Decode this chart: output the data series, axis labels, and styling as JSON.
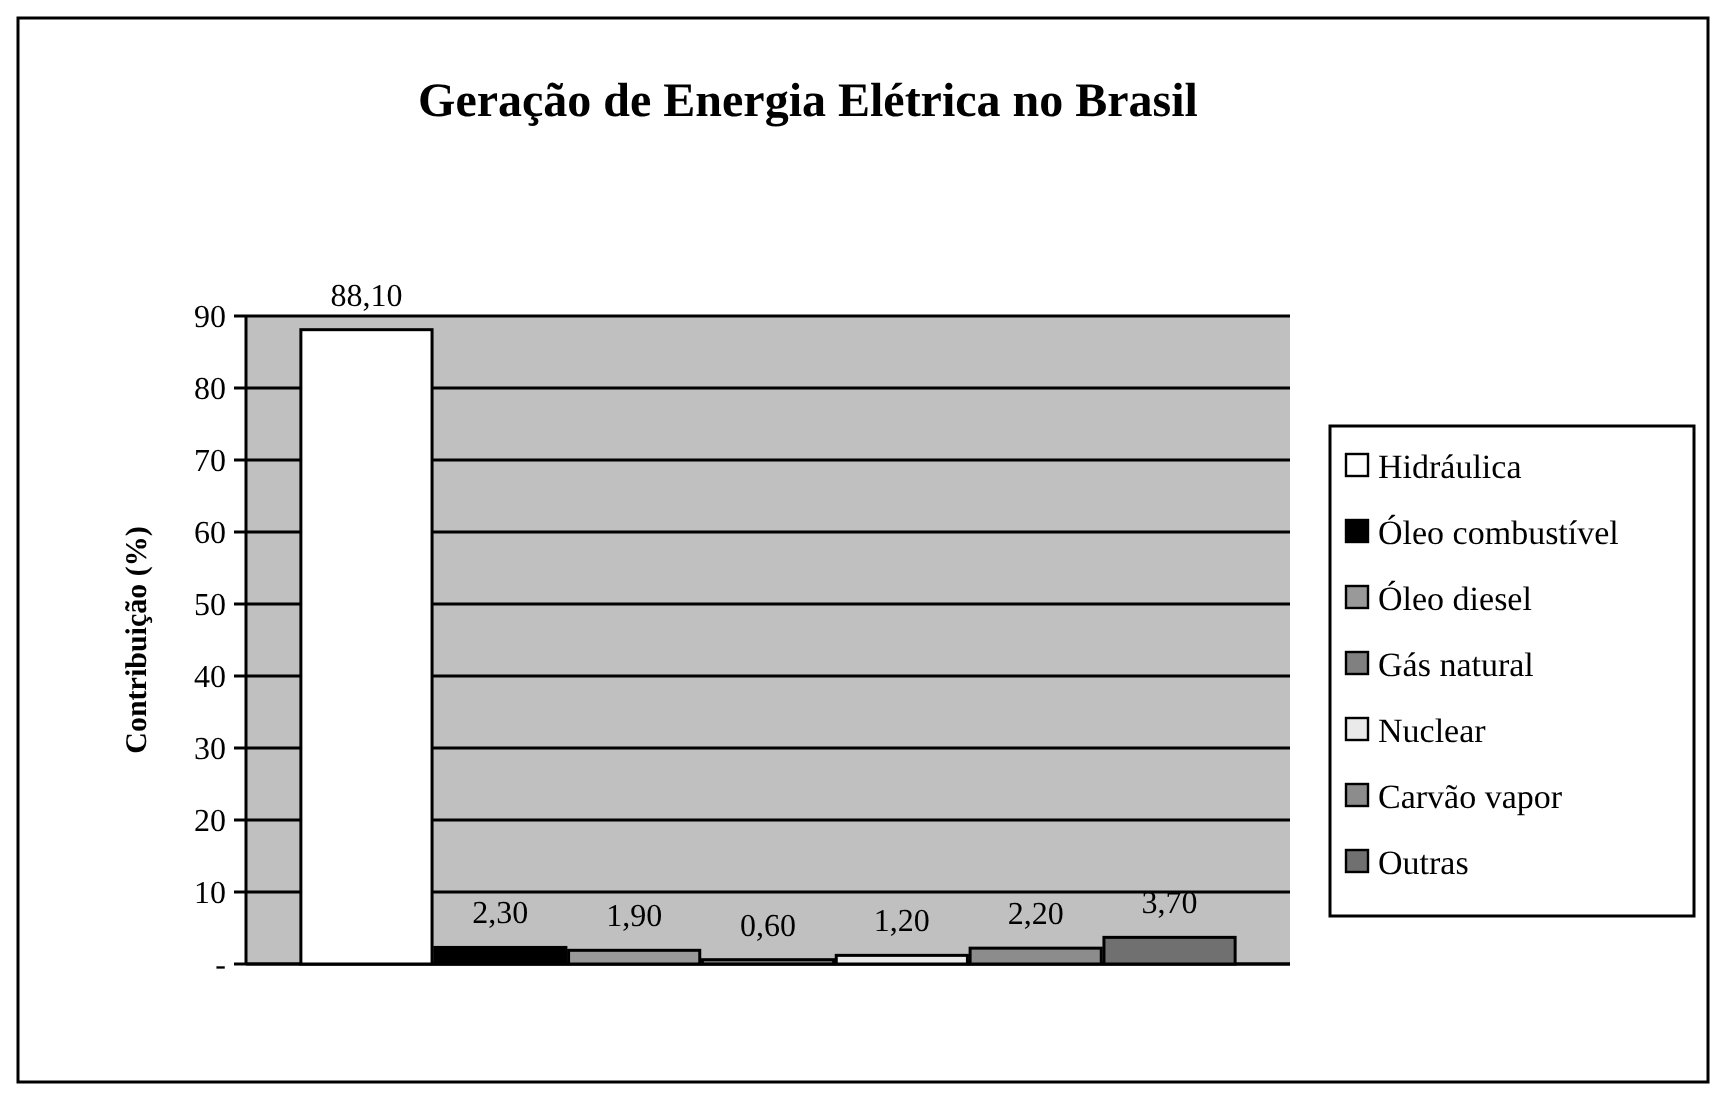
{
  "chart_data": {
    "type": "bar",
    "title": "Geração de Energia Elétrica no Brasil",
    "ylabel": "Contribuição (%)",
    "categories": [
      null
    ],
    "series": [
      {
        "name": "Hidráulica",
        "color": "#ffffff",
        "values": [
          88.1
        ],
        "value_labels": [
          "88,10"
        ]
      },
      {
        "name": "Óleo combustível",
        "color": "#000000",
        "values": [
          2.3
        ],
        "value_labels": [
          "2,30"
        ]
      },
      {
        "name": "Óleo diesel",
        "color": "#999999",
        "values": [
          1.9
        ],
        "value_labels": [
          "1,90"
        ]
      },
      {
        "name": "Gás natural",
        "color": "#808080",
        "values": [
          0.6
        ],
        "value_labels": [
          "0,60"
        ]
      },
      {
        "name": "Nuclear",
        "color": "#eaeaea",
        "values": [
          1.2
        ],
        "value_labels": [
          "1,20"
        ]
      },
      {
        "name": "Carvão vapor",
        "color": "#8c8c8c",
        "values": [
          2.2
        ],
        "value_labels": [
          "2,20"
        ]
      },
      {
        "name": "Outras",
        "color": "#707070",
        "values": [
          3.7
        ],
        "value_labels": [
          "3,70"
        ]
      }
    ],
    "ylim": [
      0,
      90
    ],
    "yticks": [
      {
        "value": 0,
        "label": "-"
      },
      10,
      20,
      30,
      40,
      50,
      60,
      70,
      80,
      90
    ],
    "grid": "y",
    "legend": "right"
  }
}
